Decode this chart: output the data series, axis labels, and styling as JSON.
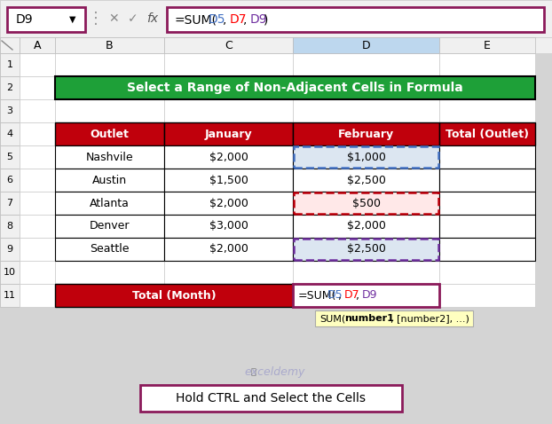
{
  "title": "Select a Range of Non-Adjacent Cells in Formula",
  "title_bg": "#1EA038",
  "title_color": "#FFFFFF",
  "headers": [
    "Outlet",
    "January",
    "February",
    "Total (Outlet)"
  ],
  "header_bg": "#C0000C",
  "header_color": "#FFFFFF",
  "rows": [
    [
      "Nashvile",
      "$2,000",
      "$1,000",
      ""
    ],
    [
      "Austin",
      "$1,500",
      "$2,500",
      ""
    ],
    [
      "Atlanta",
      "$2,000",
      "$500",
      ""
    ],
    [
      "Denver",
      "$3,000",
      "$2,000",
      ""
    ],
    [
      "Seattle",
      "$2,000",
      "$2,500",
      ""
    ]
  ],
  "footer_label": "Total (Month)",
  "note": "Hold CTRL and Select the Cells",
  "cell_ref": "D9",
  "formula_bar_parts": [
    "=SUM(",
    "D5",
    ",",
    "D7",
    ",",
    "D9",
    ")"
  ],
  "formula_bar_colors": [
    "#000000",
    "#4472C4",
    "#000000",
    "#FF0000",
    "#000000",
    "#7030A0",
    "#000000"
  ],
  "formula_parts": [
    "=SUM(",
    "D5",
    ",",
    "D7",
    ",",
    "D9"
  ],
  "formula_colors": [
    "#000000",
    "#4472C4",
    "#000000",
    "#FF0000",
    "#000000",
    "#7030A0"
  ],
  "highlighted_rows": [
    0,
    2,
    4
  ],
  "highlight_colors": [
    "#DCE6F1",
    "#FFE8E8",
    "#DCE6F1"
  ],
  "dashed_colors": [
    "#4472C4",
    "#C0000C",
    "#7030A0"
  ],
  "fig_bg": "#D4D4D4",
  "toolbar_bg": "#F0F0F0",
  "col_header_bg": "#F0F0F0",
  "col_D_header_bg": "#BDD7EE",
  "row_num_bg": "#F0F0F0",
  "grid_color": "#BBBBBB",
  "table_border": "#000000",
  "namebox_border": "#8B1A5A",
  "formula_border": "#8B1A5A",
  "note_border": "#8B1A5A",
  "tooltip_bg": "#FFFFC0"
}
